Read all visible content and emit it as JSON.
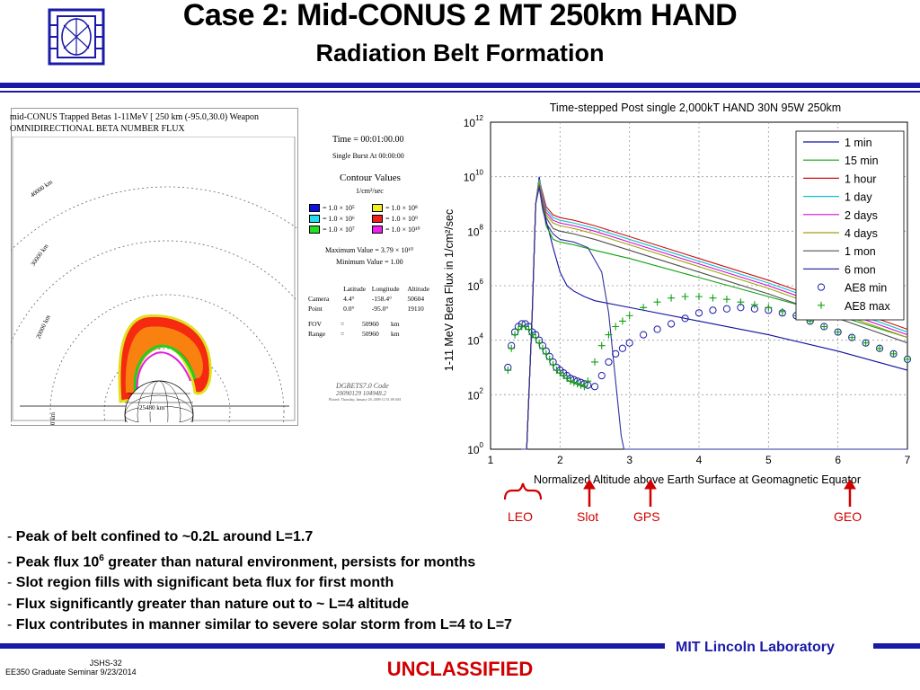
{
  "slide": {
    "title": "Case 2: Mid-CONUS 2 MT 250km HAND",
    "subtitle": "Radiation Belt Formation",
    "bullets": [
      "Peak of belt confined to ~0.2L around L=1.7",
      "Peak flux 10",
      "Slot region fills with significant beta flux for first month",
      "Flux significantly greater than nature out to ~ L=4 altitude",
      "Flux contributes in manner similar to severe solar storm from L=4 to L=7"
    ],
    "bullet2_sup": "6",
    "bullet2_rest": " greater than natural environment, persists for months",
    "footer_org": "MIT Lincoln Laboratory",
    "footer_id": "JSHS-32",
    "footer_course": "EE350 Graduate Seminar 9/23/2014",
    "classification": "UNCLASSIFIED",
    "colors": {
      "accent": "#1a1aa8",
      "classification": "#d00000"
    }
  },
  "left_panel": {
    "title_line1": "mid-CONUS Trapped Betas 1-11MeV [ 250 km (-95.0,30.0) Weapon",
    "title_line2": "OMNIDIRECTIONAL BETA NUMBER FLUX",
    "ring_labels": [
      "40000 km",
      "30000 km",
      "20000 km",
      "25480 km",
      "0 km"
    ],
    "time": "Time = 00:01:00.00",
    "burst": "Single Burst At 00:00:00",
    "contour_title": "Contour Values",
    "contour_unit": "1/cm²/sec",
    "contours": [
      {
        "label": "= 1.0 × 10⁵",
        "color": "#1010e0"
      },
      {
        "label": "= 1.0 × 10⁸",
        "color": "#f0f020"
      },
      {
        "label": "= 1.0 × 10⁶",
        "color": "#20e0f0"
      },
      {
        "label": "= 1.0 × 10⁹",
        "color": "#f02020"
      },
      {
        "label": "= 1.0 × 10⁷",
        "color": "#20e020"
      },
      {
        "label": "= 1.0 × 10¹⁰",
        "color": "#f020f0"
      }
    ],
    "max_value": "Maximum Value = 3.79 × 10¹⁰",
    "min_value": "Minimum Value = 1.00",
    "table_header": [
      "",
      "Latitude",
      "Longitude",
      "Altitude"
    ],
    "table_rows": [
      [
        "Camera",
        "4.4°",
        "-158.4°",
        "50604"
      ],
      [
        "Point",
        "0.0°",
        "-95.0°",
        "19110"
      ]
    ],
    "fov": [
      "FOV",
      "=",
      "50960",
      "km"
    ],
    "range": [
      "Range",
      "=",
      "50960",
      "km"
    ],
    "code_line1": "DGBETS7.0 Code",
    "code_line2": "20090129    104948.2",
    "code_line3": "Plotted: Thursday, January 29, 2009 11:51:09 AM"
  },
  "annotations": {
    "leo": "LEO",
    "slot": "Slot",
    "gps": "GPS",
    "geo": "GEO"
  },
  "chart_data": {
    "type": "line",
    "title": "Time-stepped Post single 2,000kT HAND 30N 95W 250km",
    "xlabel": "Normalized Altitude above Earth Surface at Geomagnetic Equator",
    "ylabel": "1-11 MeV Beta Flux in 1/cm²/sec",
    "xlim": [
      1,
      7
    ],
    "ylim_log10": [
      0,
      12
    ],
    "y_scale": "log",
    "x_ticks": [
      1,
      2,
      3,
      4,
      5,
      6,
      7
    ],
    "y_ticks_log10": [
      0,
      2,
      4,
      6,
      8,
      10,
      12
    ],
    "grid": true,
    "legend_position": "top-right",
    "series": [
      {
        "name": "1 min",
        "color": "#1010a0",
        "style": "line",
        "x": [
          1.45,
          1.52,
          1.6,
          1.65,
          1.7,
          1.75,
          1.8,
          1.9,
          2.0,
          2.1,
          2.2,
          2.35,
          2.5,
          3.0,
          4.0,
          5.0,
          6.0,
          7.0
        ],
        "y": [
          0,
          0,
          5.0,
          9.0,
          10.0,
          9.2,
          8.4,
          7.4,
          6.5,
          6.0,
          5.8,
          5.6,
          5.45,
          5.2,
          4.7,
          4.2,
          3.6,
          2.9
        ]
      },
      {
        "name": "15 min",
        "color": "#10a010",
        "style": "line",
        "x": [
          1.45,
          1.52,
          1.6,
          1.65,
          1.7,
          1.75,
          1.8,
          1.9,
          2.0,
          2.2,
          2.5,
          3.0,
          4.0,
          5.0,
          6.0,
          7.0
        ],
        "y": [
          0,
          0,
          5.0,
          9.0,
          9.9,
          9.0,
          8.2,
          7.7,
          7.6,
          7.5,
          7.3,
          7.0,
          6.3,
          5.6,
          4.9,
          4.1
        ]
      },
      {
        "name": "1 hour",
        "color": "#d01010",
        "style": "line",
        "x": [
          1.45,
          1.52,
          1.6,
          1.65,
          1.7,
          1.75,
          1.8,
          1.9,
          2.0,
          2.2,
          2.5,
          3.0,
          4.0,
          5.0,
          6.0,
          7.0
        ],
        "y": [
          0,
          0,
          5.0,
          9.0,
          9.9,
          9.4,
          8.9,
          8.6,
          8.5,
          8.4,
          8.2,
          7.8,
          7.0,
          6.2,
          5.3,
          4.4
        ]
      },
      {
        "name": "1 day",
        "color": "#10c0d0",
        "style": "line",
        "x": [
          1.45,
          1.52,
          1.6,
          1.65,
          1.7,
          1.75,
          1.8,
          1.9,
          2.0,
          2.2,
          2.5,
          3.0,
          4.0,
          5.0,
          6.0,
          7.0
        ],
        "y": [
          0,
          0,
          5.0,
          9.0,
          9.9,
          9.3,
          8.8,
          8.5,
          8.4,
          8.3,
          8.1,
          7.7,
          6.9,
          6.1,
          5.2,
          4.3
        ]
      },
      {
        "name": "2 days",
        "color": "#d010d0",
        "style": "line",
        "x": [
          1.45,
          1.52,
          1.6,
          1.65,
          1.7,
          1.75,
          1.8,
          1.9,
          2.0,
          2.2,
          2.5,
          3.0,
          4.0,
          5.0,
          6.0,
          7.0
        ],
        "y": [
          0,
          0,
          5.0,
          9.0,
          9.8,
          9.2,
          8.7,
          8.4,
          8.3,
          8.2,
          8.0,
          7.6,
          6.8,
          6.0,
          5.1,
          4.2
        ]
      },
      {
        "name": "4 days",
        "color": "#a0a010",
        "style": "line",
        "x": [
          1.45,
          1.52,
          1.6,
          1.65,
          1.7,
          1.75,
          1.8,
          1.9,
          2.0,
          2.2,
          2.5,
          3.0,
          4.0,
          5.0,
          6.0,
          7.0
        ],
        "y": [
          0,
          0,
          5.0,
          9.0,
          9.8,
          9.1,
          8.6,
          8.3,
          8.2,
          8.1,
          7.9,
          7.5,
          6.7,
          5.9,
          5.0,
          4.1
        ]
      },
      {
        "name": "1 mon",
        "color": "#505050",
        "style": "line",
        "x": [
          1.45,
          1.52,
          1.6,
          1.65,
          1.7,
          1.75,
          1.8,
          1.9,
          2.0,
          2.2,
          2.5,
          3.0,
          4.0,
          5.0,
          6.0,
          7.0
        ],
        "y": [
          0,
          0,
          5.0,
          9.0,
          9.7,
          9.0,
          8.5,
          8.1,
          8.0,
          7.9,
          7.7,
          7.3,
          6.5,
          5.7,
          4.8,
          3.9
        ]
      },
      {
        "name": "6 mon",
        "color": "#3030a0",
        "style": "line",
        "x": [
          1.45,
          1.52,
          1.6,
          1.65,
          1.7,
          1.75,
          1.8,
          1.9,
          2.0,
          2.2,
          2.4,
          2.6,
          2.7,
          2.8,
          2.88,
          2.92,
          3.0,
          7.0
        ],
        "y": [
          0,
          0,
          5.0,
          9.0,
          9.6,
          8.8,
          8.3,
          7.9,
          7.7,
          7.6,
          7.4,
          6.5,
          5.0,
          2.5,
          0.5,
          0,
          0,
          0
        ]
      },
      {
        "name": "AE8 min",
        "color": "#1a1aa8",
        "style": "circle",
        "x": [
          1.25,
          1.3,
          1.35,
          1.4,
          1.45,
          1.5,
          1.55,
          1.6,
          1.65,
          1.7,
          1.75,
          1.8,
          1.85,
          1.9,
          1.95,
          2.0,
          2.05,
          2.1,
          2.15,
          2.2,
          2.25,
          2.3,
          2.35,
          2.4,
          2.5,
          2.6,
          2.7,
          2.8,
          2.9,
          3.0,
          3.2,
          3.4,
          3.6,
          3.8,
          4.0,
          4.2,
          4.4,
          4.6,
          4.8,
          5.0,
          5.2,
          5.4,
          5.6,
          5.8,
          6.0,
          6.2,
          6.4,
          6.6,
          6.8,
          7.0
        ],
        "y": [
          3.0,
          3.8,
          4.3,
          4.5,
          4.6,
          4.6,
          4.5,
          4.3,
          4.2,
          4.0,
          3.8,
          3.6,
          3.4,
          3.2,
          3.0,
          2.9,
          2.8,
          2.7,
          2.6,
          2.55,
          2.5,
          2.45,
          2.4,
          2.35,
          2.3,
          2.7,
          3.2,
          3.5,
          3.7,
          3.9,
          4.2,
          4.4,
          4.6,
          4.8,
          5.0,
          5.1,
          5.15,
          5.2,
          5.15,
          5.1,
          5.0,
          4.9,
          4.7,
          4.5,
          4.3,
          4.1,
          3.9,
          3.7,
          3.5,
          3.3
        ]
      },
      {
        "name": "AE8 max",
        "color": "#10a010",
        "style": "plus",
        "x": [
          1.25,
          1.3,
          1.35,
          1.4,
          1.45,
          1.5,
          1.55,
          1.6,
          1.65,
          1.7,
          1.75,
          1.8,
          1.85,
          1.9,
          1.95,
          2.0,
          2.05,
          2.1,
          2.15,
          2.2,
          2.25,
          2.3,
          2.35,
          2.4,
          2.5,
          2.6,
          2.7,
          2.8,
          2.9,
          3.0,
          3.2,
          3.4,
          3.6,
          3.8,
          4.0,
          4.2,
          4.4,
          4.6,
          4.8,
          5.0,
          5.2,
          5.4,
          5.6,
          5.8,
          6.0,
          6.2,
          6.4,
          6.6,
          6.8,
          7.0
        ],
        "y": [
          2.9,
          3.7,
          4.2,
          4.4,
          4.5,
          4.5,
          4.4,
          4.2,
          4.1,
          3.9,
          3.7,
          3.5,
          3.3,
          3.1,
          2.9,
          2.8,
          2.7,
          2.6,
          2.5,
          2.45,
          2.4,
          2.35,
          2.3,
          2.5,
          3.2,
          3.8,
          4.2,
          4.5,
          4.7,
          4.9,
          5.2,
          5.4,
          5.55,
          5.6,
          5.6,
          5.55,
          5.5,
          5.4,
          5.3,
          5.2,
          5.05,
          4.9,
          4.7,
          4.5,
          4.3,
          4.1,
          3.9,
          3.7,
          3.5,
          3.3
        ]
      }
    ]
  }
}
